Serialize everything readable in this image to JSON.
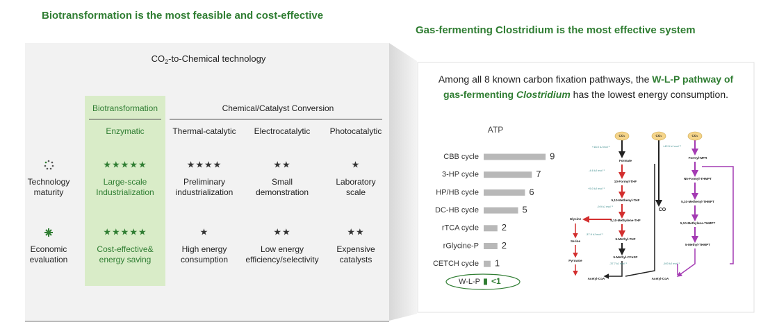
{
  "left": {
    "title": "Biotransformation is the most feasible and cost-effective",
    "heading": {
      "main": "CO",
      "sub": "2",
      "rest": "-to-Chemical technology"
    },
    "group_headers": [
      "Biotransformation",
      "Chemical/Catalyst Conversion"
    ],
    "columns": [
      "Enzymatic",
      "Thermal-catalytic",
      "Electrocatalytic",
      "Photocatalytic"
    ],
    "rows": [
      {
        "label": [
          "Technology",
          "maturity"
        ],
        "stars": [
          "★★★★★",
          "★★★★",
          "★★",
          "★"
        ],
        "cells": [
          [
            "Large-scale",
            "Industrialization"
          ],
          [
            "Preliminary",
            "industrialization"
          ],
          [
            "Small",
            "demonstration"
          ],
          [
            "Laboratory",
            "scale"
          ]
        ]
      },
      {
        "label": [
          "Economic",
          "evaluation"
        ],
        "stars": [
          "★★★★★",
          "★",
          "★★",
          "★★"
        ],
        "cells": [
          [
            "Cost-effective&",
            "energy saving"
          ],
          [
            "High energy",
            "consumption"
          ],
          [
            "Low energy",
            "efficiency/selectivity"
          ],
          [
            "Expensive",
            "catalysts"
          ]
        ]
      }
    ]
  },
  "right": {
    "title": "Gas-fermenting Clostridium is the most effective system",
    "text": {
      "a": "Among all 8 known carbon fixation pathways, the ",
      "b": "W-L-P pathway of",
      "c": "gas-fermenting ",
      "d": "Clostridium",
      "e": " has the lowest energy consumption."
    }
  },
  "chart_data": {
    "type": "bar",
    "orientation": "horizontal",
    "title": "ATP",
    "categories": [
      "CBB cycle",
      "3-HP cycle",
      "HP/HB cycle",
      "DC-HB cycle",
      "rTCA cycle",
      "rGlycine-P",
      "CETCH cycle",
      "W-L-P"
    ],
    "values": [
      9,
      7,
      6,
      5,
      2,
      2,
      1,
      0.5
    ],
    "value_labels": [
      "9",
      "7",
      "6",
      "5",
      "2",
      "2",
      "1",
      "<1"
    ],
    "color": "#b8b8b8",
    "highlight_color": "#2f7d32"
  },
  "diagram": {
    "co2": [
      "CO₂",
      "CO₂",
      "CO₂"
    ],
    "co": "CO",
    "left_nodes": [
      "Formate",
      "10-Formyl-THF",
      "5,10-Methenyl-THF",
      "5,10-Methylene-THF",
      "5-Methyl-THF",
      "5-Methyl-CFeSP",
      "Acetyl-CoA"
    ],
    "side_nodes": [
      "Glycine",
      "Serine",
      "Pyruvate"
    ],
    "right_nodes": [
      "Formyl-MFR",
      "N5-Formyl-THMPT",
      "5,10-Methenyl-THMPT",
      "5,10-Methylene-THMPT",
      "5-Methyl-THMPT",
      "Acetyl-CoA"
    ],
    "energies": [
      "+18.0 kJ mol⁻¹",
      "-4.6 kJ mol⁻¹",
      "+5.0 kJ mol⁻¹",
      "-9.9 kJ mol⁻¹",
      "-37.9 kJ mol⁻¹",
      "-37.7 kJ mol⁻¹",
      "+42.5 kJ mol⁻¹",
      "-100 kJ mol⁻¹"
    ]
  }
}
